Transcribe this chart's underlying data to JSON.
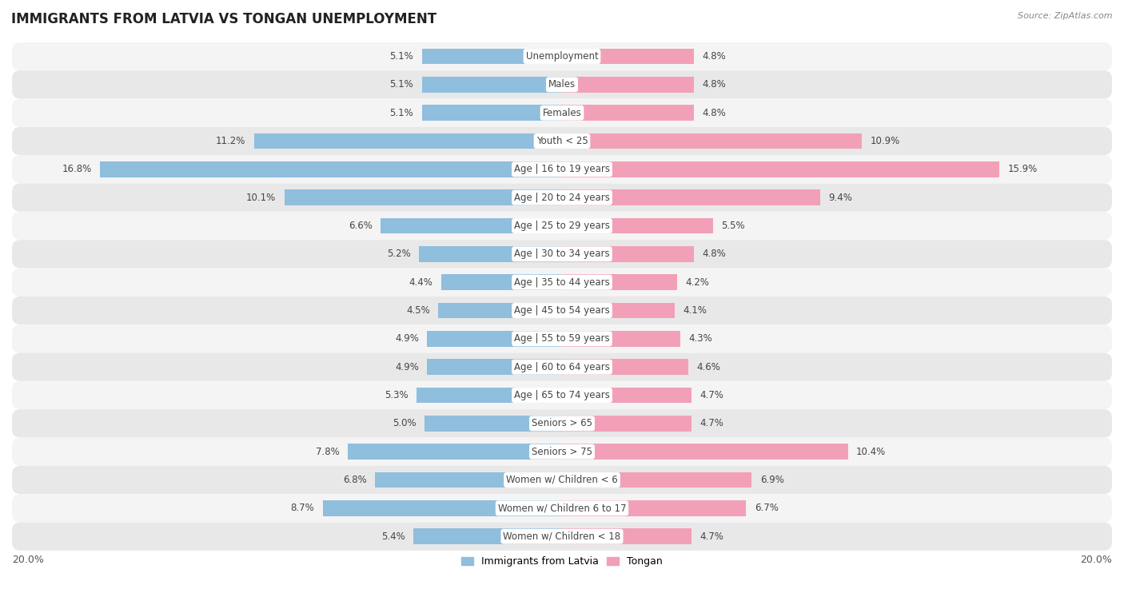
{
  "title": "IMMIGRANTS FROM LATVIA VS TONGAN UNEMPLOYMENT",
  "source": "Source: ZipAtlas.com",
  "categories": [
    "Unemployment",
    "Males",
    "Females",
    "Youth < 25",
    "Age | 16 to 19 years",
    "Age | 20 to 24 years",
    "Age | 25 to 29 years",
    "Age | 30 to 34 years",
    "Age | 35 to 44 years",
    "Age | 45 to 54 years",
    "Age | 55 to 59 years",
    "Age | 60 to 64 years",
    "Age | 65 to 74 years",
    "Seniors > 65",
    "Seniors > 75",
    "Women w/ Children < 6",
    "Women w/ Children 6 to 17",
    "Women w/ Children < 18"
  ],
  "latvia_values": [
    5.1,
    5.1,
    5.1,
    11.2,
    16.8,
    10.1,
    6.6,
    5.2,
    4.4,
    4.5,
    4.9,
    4.9,
    5.3,
    5.0,
    7.8,
    6.8,
    8.7,
    5.4
  ],
  "tongan_values": [
    4.8,
    4.8,
    4.8,
    10.9,
    15.9,
    9.4,
    5.5,
    4.8,
    4.2,
    4.1,
    4.3,
    4.6,
    4.7,
    4.7,
    10.4,
    6.9,
    6.7,
    4.7
  ],
  "latvia_color": "#90bedd",
  "tongan_color": "#f2a0b8",
  "bar_height": 0.55,
  "xlim": 20.0,
  "bg_light": "#f4f4f4",
  "bg_dark": "#e8e8e8",
  "legend_latvia": "Immigrants from Latvia",
  "legend_tongan": "Tongan",
  "title_fontsize": 12,
  "label_fontsize": 8.5,
  "value_fontsize": 8.5
}
